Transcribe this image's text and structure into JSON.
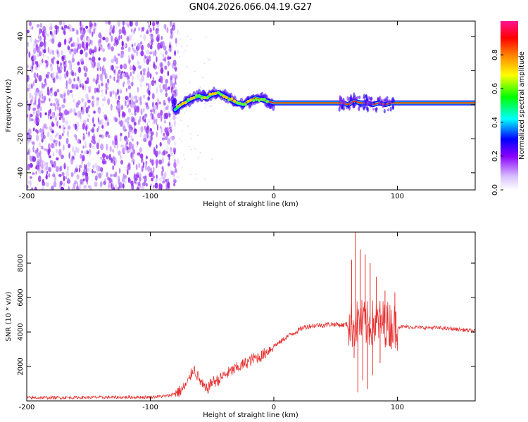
{
  "title": "GN04.2026.066.04.19.G27",
  "chart_data": [
    {
      "type": "heatmap",
      "name": "spectrogram",
      "xlabel": "Height of straight line (km)",
      "ylabel": "Frequency (Hz)",
      "xlim": [
        -200,
        163
      ],
      "ylim": [
        -50,
        49
      ],
      "xticks": [
        -200,
        -100,
        0,
        100
      ],
      "yticks": [
        -40,
        -20,
        0,
        20,
        40
      ],
      "noise_region_x": [
        -200,
        -80
      ],
      "ridge": {
        "x": [
          -80,
          -75,
          -70,
          -65,
          -60,
          -55,
          -50,
          -45,
          -40,
          -35,
          -30,
          -25,
          -20,
          -15,
          -10,
          -5,
          0,
          50,
          55,
          60,
          65,
          70,
          75,
          80,
          85,
          90,
          95,
          100,
          163
        ],
        "freq": [
          -3,
          0,
          2,
          4,
          5,
          4,
          6,
          7,
          5,
          3,
          1,
          0,
          2,
          4,
          3,
          2,
          1,
          1,
          1,
          0,
          2,
          1,
          1,
          0,
          1,
          0,
          1,
          1,
          1
        ]
      },
      "colorbar": {
        "label": "Normalized spectral amplitude",
        "range": [
          0,
          1
        ],
        "ticks": [
          0.0,
          0.2,
          0.4,
          0.6,
          0.8
        ],
        "tick_labels": [
          "0.0",
          "0.2",
          "0.4",
          "0.6",
          "0.8"
        ],
        "colors": [
          "#ffffff",
          "#d8c0ff",
          "#8a00ff",
          "#0000ff",
          "#00ffff",
          "#00ff00",
          "#ffff00",
          "#ff8000",
          "#ff0000",
          "#ff1493"
        ]
      }
    },
    {
      "type": "line",
      "name": "snr",
      "xlabel": "Height of straight line (km)",
      "ylabel": "SNR (10 * v/v)",
      "xlim": [
        -200,
        163
      ],
      "ylim": [
        0,
        9800
      ],
      "xticks": [
        -200,
        -100,
        0,
        100
      ],
      "yticks": [
        2000,
        4000,
        6000,
        8000
      ],
      "color": "#e83030",
      "series": {
        "x": [
          -200,
          -150,
          -100,
          -85,
          -75,
          -70,
          -65,
          -60,
          -55,
          -50,
          -45,
          -40,
          -35,
          -30,
          -25,
          -20,
          -15,
          -10,
          -5,
          0,
          5,
          10,
          15,
          20,
          25,
          30,
          35,
          40,
          45,
          50,
          55,
          60,
          65,
          70,
          75,
          80,
          85,
          90,
          95,
          100,
          110,
          120,
          130,
          140,
          150,
          163
        ],
        "y": [
          180,
          200,
          220,
          300,
          600,
          1000,
          1900,
          1200,
          600,
          1100,
          1200,
          1500,
          1700,
          1900,
          2100,
          2300,
          2500,
          2600,
          2900,
          3200,
          3400,
          3700,
          3900,
          4100,
          4300,
          4350,
          4400,
          4400,
          4450,
          4450,
          4400,
          4450,
          4400,
          4600,
          4400,
          4500,
          4550,
          4500,
          4400,
          4300,
          4300,
          4250,
          4250,
          4200,
          4150,
          4050
        ]
      },
      "spikes": {
        "x": [
          63,
          65,
          66,
          68,
          70,
          72,
          74,
          76,
          78,
          80,
          83,
          86,
          90,
          94,
          98
        ],
        "y": [
          8200,
          2500,
          9800,
          500,
          8800,
          1200,
          8500,
          700,
          8000,
          1500,
          7200,
          2200,
          6400,
          3200,
          6300
        ]
      }
    }
  ]
}
